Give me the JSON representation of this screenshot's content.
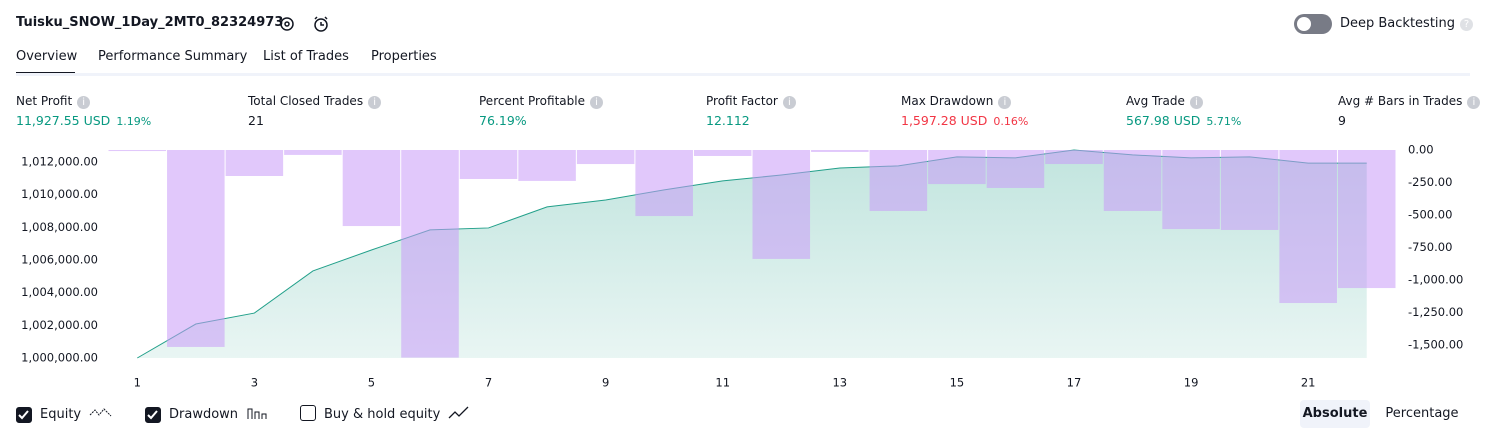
{
  "header": {
    "title": "Tuisku_SNOW_1Day_2MT0_82324973",
    "toggle": {
      "label": "Deep Backtesting",
      "on": false
    }
  },
  "tabs": {
    "items": [
      "Overview",
      "Performance Summary",
      "List of Trades",
      "Properties"
    ],
    "active": 0
  },
  "metrics": [
    {
      "label": "Net Profit",
      "value": "11,927.55 USD",
      "percent": "1.19%",
      "color": "#089981"
    },
    {
      "label": "Total Closed Trades",
      "value": "21",
      "color": "#131722"
    },
    {
      "label": "Percent Profitable",
      "value": "76.19%",
      "color": "#089981"
    },
    {
      "label": "Profit Factor",
      "value": "12.112",
      "color": "#089981"
    },
    {
      "label": "Max Drawdown",
      "value": "1,597.28 USD",
      "percent": "0.16%",
      "color": "#f23645"
    },
    {
      "label": "Avg Trade",
      "value": "567.98 USD",
      "percent": "5.71%",
      "color": "#089981"
    },
    {
      "label": "Avg # Bars in Trades",
      "value": "9",
      "color": "#131722"
    }
  ],
  "chart_data": {
    "type": "line",
    "x": [
      1,
      2,
      3,
      4,
      5,
      6,
      7,
      8,
      9,
      10,
      11,
      12,
      13,
      14,
      15,
      16,
      17,
      18,
      19,
      20,
      21,
      22
    ],
    "xlim": [
      0.5,
      22.5
    ],
    "xticks": [
      1,
      3,
      5,
      7,
      9,
      11,
      13,
      15,
      17,
      19,
      21
    ],
    "ylim": [
      1000000,
      1012730
    ],
    "yticks": [
      {
        "value": 1000000,
        "label": "1,000,000.00"
      },
      {
        "value": 1002000,
        "label": "1,002,000.00"
      },
      {
        "value": 1004000,
        "label": "1,004,000.00"
      },
      {
        "value": 1006000,
        "label": "1,006,000.00"
      },
      {
        "value": 1008000,
        "label": "1,008,000.00"
      },
      {
        "value": 1010000,
        "label": "1,010,000.00"
      },
      {
        "value": 1012000,
        "label": "1,012,000.00"
      }
    ],
    "y2lim": [
      -1600,
      0
    ],
    "y2ticks": [
      {
        "value": 0,
        "label": "0.00"
      },
      {
        "value": -250,
        "label": "-250.00"
      },
      {
        "value": -500,
        "label": "-500.00"
      },
      {
        "value": -750,
        "label": "-750.00"
      },
      {
        "value": -1000,
        "label": "-1,000.00"
      },
      {
        "value": -1250,
        "label": "-1,250.00"
      },
      {
        "value": -1500,
        "label": "-1,500.00"
      }
    ],
    "series": [
      {
        "name": "Equity",
        "type": "area",
        "color": "#22a08a",
        "checked": true,
        "values": [
          1000000,
          1002080,
          1002750,
          1005330,
          1006610,
          1007840,
          1007960,
          1009250,
          1009670,
          1010290,
          1010840,
          1011200,
          1011630,
          1011760,
          1012310,
          1012250,
          1012730,
          1012430,
          1012250,
          1012310,
          1011930,
          1011930
        ]
      },
      {
        "name": "Drawdown",
        "type": "bar",
        "axis": "y2",
        "color": "#c89af8",
        "checked": true,
        "values": [
          -8,
          -1515,
          -200,
          -38,
          -585,
          -1597,
          -223,
          -238,
          -108,
          -508,
          -46,
          -838,
          -15,
          -469,
          -262,
          -292,
          -108,
          -469,
          -608,
          -615,
          -1177,
          -1062
        ]
      }
    ],
    "extra_legend": {
      "label": "Buy & hold equity",
      "checked": false
    },
    "modes": {
      "items": [
        "Absolute",
        "Percentage"
      ],
      "active": 0
    }
  }
}
